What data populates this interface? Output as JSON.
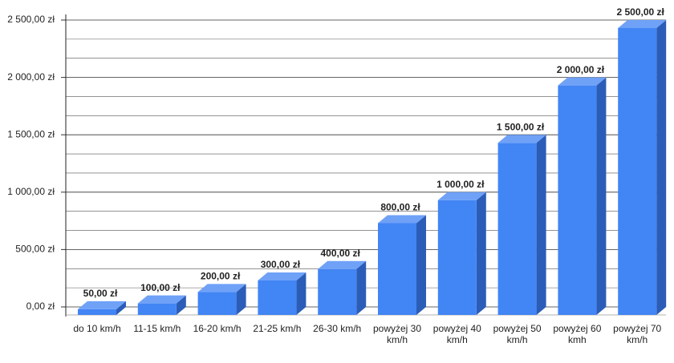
{
  "chart_data": {
    "type": "bar3d",
    "categories": [
      "do 10 km/h",
      "11-15 km/h",
      "16-20 km/h",
      "21-25 km/h",
      "26-30 km/h",
      "powyżej 30 km/h",
      "powyżej 40 km/h",
      "powyżej 50 km/h",
      "powyżej 60 kmh",
      "powyżej 70 km/h"
    ],
    "values": [
      50,
      100,
      200,
      300,
      400,
      800,
      1000,
      1500,
      2000,
      2500
    ],
    "value_labels": [
      "50,00 zł",
      "100,00 zł",
      "200,00 zł",
      "300,00 zł",
      "400,00 zł",
      "800,00 zł",
      "1 000,00 zł",
      "1 500,00 zł",
      "2 000,00 zł",
      "2 500,00 zł"
    ],
    "color": "#4285f4",
    "ylim": [
      0,
      2500
    ],
    "yticks": [
      {
        "value": 0,
        "label": "0,00 zł"
      },
      {
        "value": 500,
        "label": "500,00 zł"
      },
      {
        "value": 1000,
        "label": "1 000,00 zł"
      },
      {
        "value": 1500,
        "label": "1 500,00 zł"
      },
      {
        "value": 2000,
        "label": "2 000,00 zł"
      },
      {
        "value": 2500,
        "label": "2 500,00 zł"
      }
    ],
    "grid": true
  }
}
